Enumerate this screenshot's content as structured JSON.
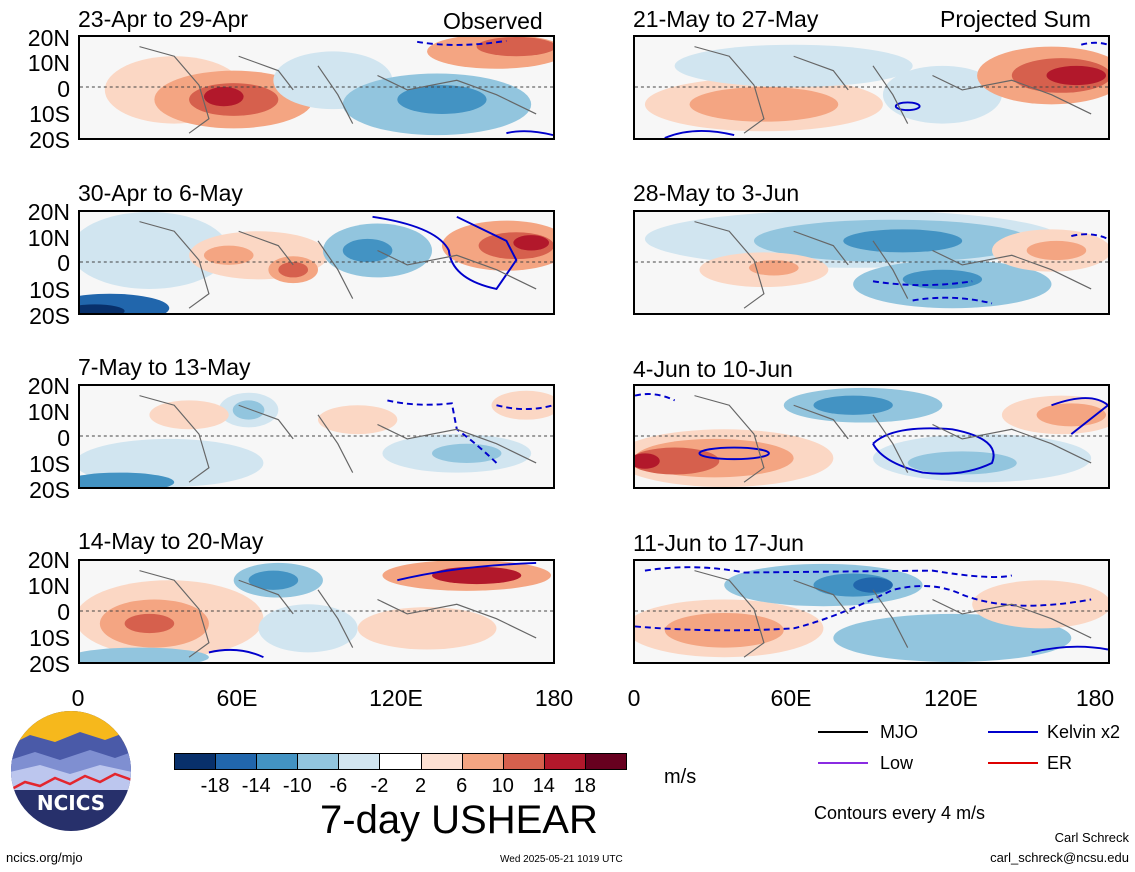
{
  "panels_left": [
    {
      "title": "23-Apr to 29-Apr",
      "label": "Observed"
    },
    {
      "title": "30-Apr to 6-May",
      "label": ""
    },
    {
      "title": "7-May to 13-May",
      "label": ""
    },
    {
      "title": "14-May to 20-May",
      "label": ""
    }
  ],
  "panels_right": [
    {
      "title": "21-May to 27-May",
      "label": "Projected Sum"
    },
    {
      "title": "28-May to 3-Jun",
      "label": ""
    },
    {
      "title": "4-Jun to 10-Jun",
      "label": ""
    },
    {
      "title": "11-Jun to 17-Jun",
      "label": ""
    }
  ],
  "lat_labels": [
    "20N",
    "10N",
    "0",
    "10S",
    "20S"
  ],
  "lon_labels": [
    "0",
    "60E",
    "120E",
    "180"
  ],
  "colorbar": {
    "colors": [
      "#08306b",
      "#2166ac",
      "#4393c3",
      "#92c5de",
      "#d1e5f0",
      "#ffffff",
      "#fde0d2",
      "#f4a582",
      "#d6604d",
      "#b2182b",
      "#67001f"
    ],
    "ticks": [
      "-18",
      "-14",
      "-10",
      "-6",
      "-2",
      "2",
      "6",
      "10",
      "14",
      "18"
    ],
    "unit": "m/s"
  },
  "chart_title": "7-day USHEAR",
  "legend": {
    "mjo": "MJO",
    "kelvin": "Kelvin x2",
    "low": "Low",
    "er": "ER",
    "colors": {
      "mjo": "#000000",
      "kelvin": "#0000cc",
      "low": "#8a2be2",
      "er": "#dd0000"
    }
  },
  "contour_note": "Contours every 4 m/s",
  "logo": {
    "text": "NCICS"
  },
  "footer": {
    "url": "ncics.org/mjo",
    "timestamp": "Wed 2025-05-21 1019 UTC",
    "author": "Carl Schreck",
    "email": "carl_schreck@ncsu.edu"
  }
}
